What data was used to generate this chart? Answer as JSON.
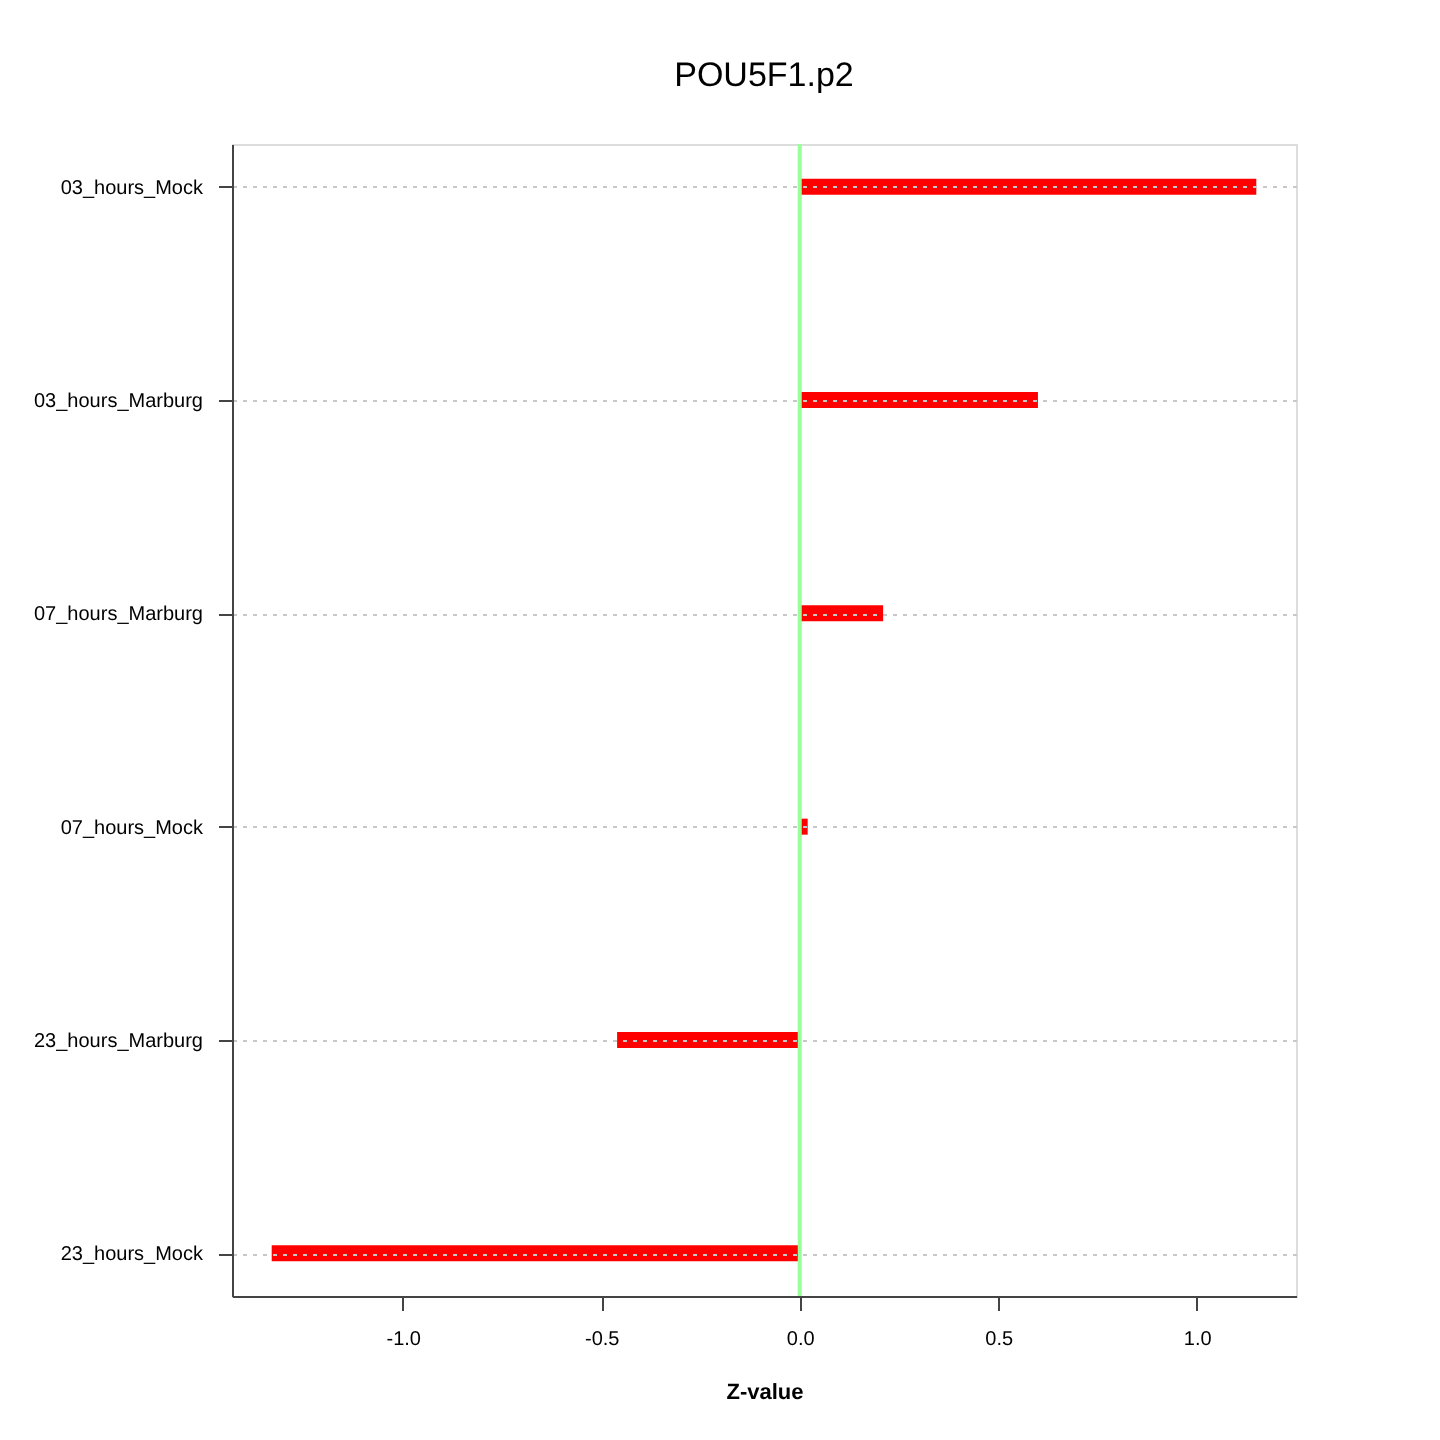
{
  "chart_data": {
    "type": "bar",
    "orientation": "horizontal",
    "title": "POU5F1.p2",
    "xlabel": "Z-value",
    "categories": [
      "03_hours_Mock",
      "03_hours_Marburg",
      "07_hours_Marburg",
      "07_hours_Mock",
      "23_hours_Marburg",
      "23_hours_Mock"
    ],
    "values": [
      1.15,
      0.6,
      0.21,
      0.02,
      -0.46,
      -1.33
    ],
    "color": "#ff0000",
    "xlim": [
      -1.43,
      1.25
    ],
    "xticks": [
      {
        "value": -1,
        "label": "-1.0"
      },
      {
        "value": -0.5,
        "label": "-0.5"
      },
      {
        "value": 0,
        "label": "0.0"
      },
      {
        "value": 0.5,
        "label": "0.5"
      },
      {
        "value": 1,
        "label": "1.0"
      }
    ],
    "grid": "y",
    "ref_lines": [
      {
        "axis": "x",
        "value": 0,
        "color": "#99ff99"
      }
    ]
  }
}
